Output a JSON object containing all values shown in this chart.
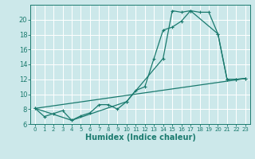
{
  "xlabel": "Humidex (Indice chaleur)",
  "background_color": "#cce8ea",
  "line_color": "#1a7a6e",
  "grid_color": "#ffffff",
  "xlim": [
    -0.5,
    23.5
  ],
  "ylim": [
    6,
    22
  ],
  "xticks": [
    0,
    1,
    2,
    3,
    4,
    5,
    6,
    7,
    8,
    9,
    10,
    11,
    12,
    13,
    14,
    15,
    16,
    17,
    18,
    19,
    20,
    21,
    22,
    23
  ],
  "yticks": [
    6,
    8,
    10,
    12,
    14,
    16,
    18,
    20
  ],
  "line1_x": [
    0,
    1,
    2,
    3,
    4,
    5,
    6,
    7,
    8,
    9,
    10,
    11,
    12,
    13,
    14,
    15,
    16,
    17,
    18,
    19,
    20,
    21,
    22,
    23
  ],
  "line1_y": [
    8.1,
    7.0,
    7.4,
    7.8,
    6.5,
    7.1,
    7.5,
    8.6,
    8.6,
    8.0,
    9.0,
    10.5,
    11.0,
    14.8,
    18.6,
    19.0,
    19.8,
    21.2,
    21.0,
    21.0,
    18.1,
    12.0,
    12.0,
    12.1
  ],
  "line2_x": [
    0,
    4,
    10,
    14,
    15,
    16,
    17,
    20,
    21,
    22,
    23
  ],
  "line2_y": [
    8.1,
    6.5,
    9.0,
    14.8,
    21.2,
    21.0,
    21.2,
    18.1,
    12.0,
    12.0,
    12.1
  ],
  "line3_x": [
    0,
    23
  ],
  "line3_y": [
    8.1,
    12.1
  ],
  "xlabel_fontsize": 7,
  "tick_fontsize_x": 5,
  "tick_fontsize_y": 6
}
